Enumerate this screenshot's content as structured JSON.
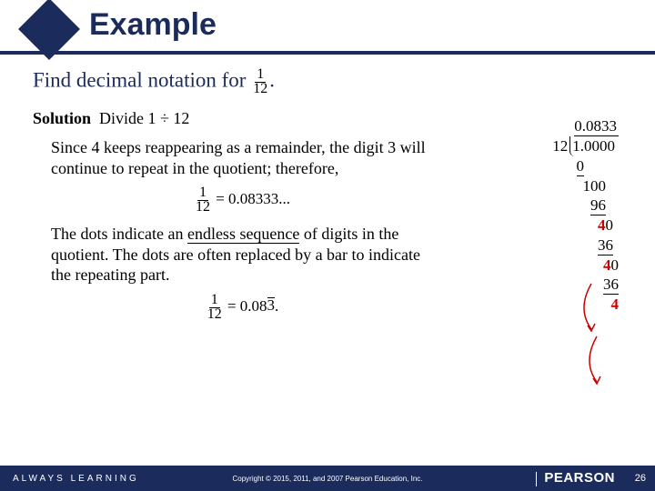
{
  "colors": {
    "navy": "#1a2b5c",
    "red": "#cc0000",
    "black": "#000000",
    "white": "#ffffff"
  },
  "header": {
    "title": "Example"
  },
  "problem": {
    "lead": "Find decimal notation for",
    "fraction": {
      "num": "1",
      "den": "12"
    },
    "trail": "."
  },
  "solution": {
    "label": "Solution",
    "text": "Divide 1 ÷ 12"
  },
  "para1": "Since 4 keeps reappearing as a remainder, the digit 3 will continue to repeat in the quotient; therefore,",
  "equation1": {
    "num": "1",
    "den": "12",
    "rhs": "= 0.08333..."
  },
  "para2a": "The dots indicate an ",
  "para2u": "endless sequence",
  "para2b": " of digits in the quotient. The dots are often replaced by a bar to indicate the repeating part.",
  "equation2": {
    "num": "1",
    "den": "12",
    "eq": "= 0.08",
    "bar": "3",
    "trail": "."
  },
  "longdiv": {
    "quotient": "0.0833",
    "divisor": "12",
    "dividend": "1.0000",
    "lines": [
      {
        "val": "0",
        "uline": true,
        "pad": 38
      },
      {
        "val": "100",
        "uline": false,
        "pad": 14
      },
      {
        "val": "96",
        "uline": true,
        "pad": 14
      },
      {
        "val": "40",
        "uline": false,
        "pad": 6,
        "red4": true
      },
      {
        "val": "36",
        "uline": true,
        "pad": 6
      },
      {
        "val": "40",
        "uline": false,
        "pad": 0,
        "red4": true
      },
      {
        "val": "36",
        "uline": true,
        "pad": 0
      },
      {
        "val": "4",
        "uline": false,
        "pad": 0,
        "allred": true
      }
    ]
  },
  "footer": {
    "always": "ALWAYS LEARNING",
    "copyright": "Copyright © 2015, 2011, and 2007 Pearson Education, Inc.",
    "brand": "PEARSON",
    "page": "26"
  }
}
